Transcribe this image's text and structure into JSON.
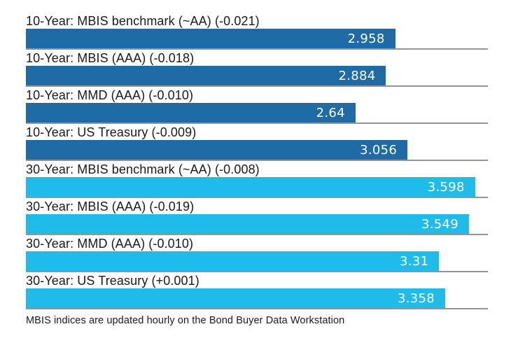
{
  "chart_data": {
    "type": "bar",
    "orientation": "horizontal",
    "title": "",
    "xlabel": "",
    "ylabel": "",
    "xlim": [
      0,
      3.7
    ],
    "grid": "per-row gray baseline under each bar, full chart width",
    "legend": "none",
    "colors": {
      "10-year": "#1F6BA5",
      "30-year": "#1FBCE9"
    },
    "baseline_color": "#949494",
    "label_color": "#1A1A1A",
    "value_text_color": "#FFFFFF",
    "rows": [
      {
        "label": "10-Year: MBIS benchmark (~AA) (-0.021)",
        "value": 2.958,
        "value_label": "2.958",
        "group": "10-year"
      },
      {
        "label": "10-Year: MBIS (AAA) (-0.018)",
        "value": 2.884,
        "value_label": "2.884",
        "group": "10-year"
      },
      {
        "label": "10-Year: MMD (AAA) (-0.010)",
        "value": 2.64,
        "value_label": "2.64",
        "group": "10-year"
      },
      {
        "label": "10-Year: US Treasury (-0.009)",
        "value": 3.056,
        "value_label": "3.056",
        "group": "10-year"
      },
      {
        "label": "30-Year: MBIS benchmark (~AA) (-0.008)",
        "value": 3.598,
        "value_label": "3.598",
        "group": "30-year"
      },
      {
        "label": "30-Year: MBIS (AAA) (-0.019)",
        "value": 3.549,
        "value_label": "3.549",
        "group": "30-year"
      },
      {
        "label": "30-Year: MMD (AAA) (-0.010)",
        "value": 3.31,
        "value_label": "3.31",
        "group": "30-year"
      },
      {
        "label": "30-Year: US Treasury (+0.001)",
        "value": 3.358,
        "value_label": "3.358",
        "group": "30-year"
      }
    ],
    "footnote": "MBIS indices are updated hourly on the Bond Buyer Data Workstation"
  }
}
